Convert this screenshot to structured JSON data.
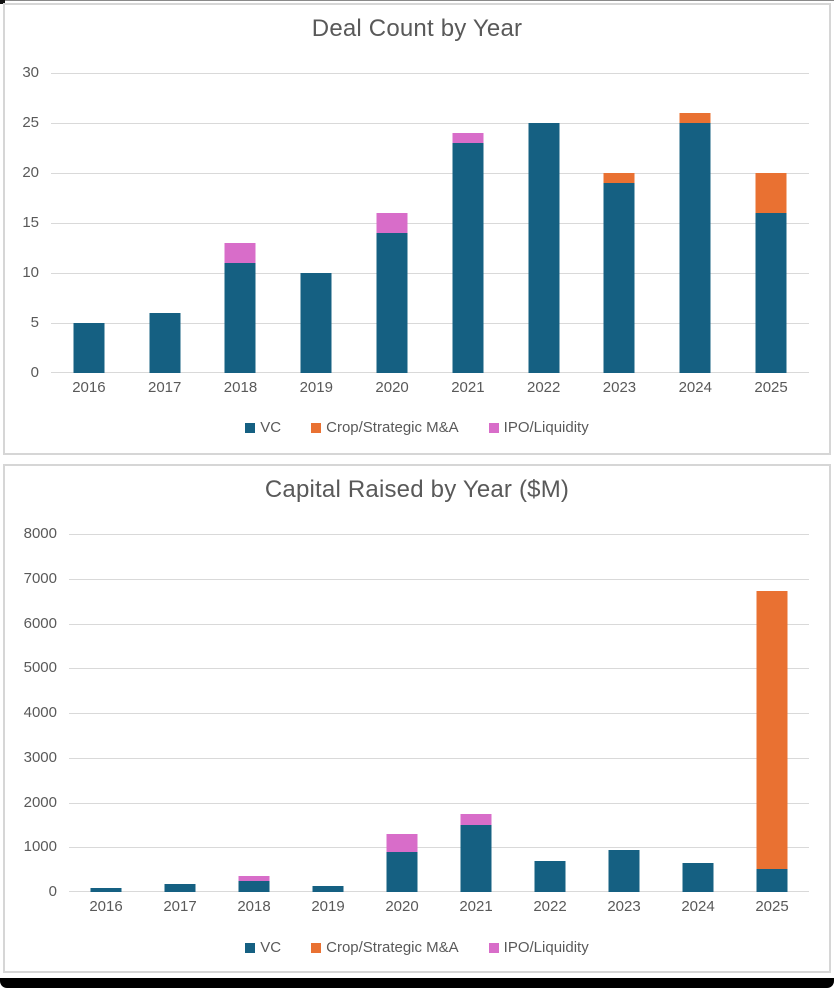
{
  "window": {
    "background": "#ffffff",
    "panel_border_color": "#D6D6D6",
    "grid_color": "#D9D9D9",
    "text_color": "#595959"
  },
  "chart_data": [
    {
      "type": "bar",
      "stacked": true,
      "title": "Deal Count by Year",
      "categories": [
        "2016",
        "2017",
        "2018",
        "2019",
        "2020",
        "2021",
        "2022",
        "2023",
        "2024",
        "2025"
      ],
      "series": [
        {
          "name": "VC",
          "color": "#156082",
          "values": [
            5,
            6,
            11,
            10,
            14,
            23,
            25,
            19,
            25,
            16
          ]
        },
        {
          "name": "Crop/Strategic M&A",
          "color": "#E97132",
          "values": [
            0,
            0,
            0,
            0,
            0,
            0,
            0,
            1,
            1,
            4
          ]
        },
        {
          "name": "IPO/Liquidity",
          "color": "#D86DC9",
          "values": [
            0,
            0,
            2,
            0,
            2,
            1,
            0,
            0,
            0,
            0
          ]
        }
      ],
      "xlabel": "",
      "ylabel": "",
      "ylim": [
        0,
        30
      ],
      "yticks": [
        0,
        5,
        10,
        15,
        20,
        25,
        30
      ],
      "grid": true,
      "legend_position": "bottom"
    },
    {
      "type": "bar",
      "stacked": true,
      "title": "Capital Raised by Year ($M)",
      "categories": [
        "2016",
        "2017",
        "2018",
        "2019",
        "2020",
        "2021",
        "2022",
        "2023",
        "2024",
        "2025"
      ],
      "series": [
        {
          "name": "VC",
          "color": "#156082",
          "values": [
            100,
            190,
            250,
            140,
            900,
            1500,
            700,
            950,
            650,
            520
          ]
        },
        {
          "name": "Crop/Strategic M&A",
          "color": "#E97132",
          "values": [
            0,
            0,
            0,
            0,
            0,
            0,
            0,
            0,
            0,
            6200
          ]
        },
        {
          "name": "IPO/Liquidity",
          "color": "#D86DC9",
          "values": [
            0,
            0,
            100,
            0,
            400,
            250,
            0,
            0,
            0,
            0
          ]
        }
      ],
      "xlabel": "",
      "ylabel": "",
      "ylim": [
        0,
        8000
      ],
      "yticks": [
        0,
        1000,
        2000,
        3000,
        4000,
        5000,
        6000,
        7000,
        8000
      ],
      "grid": true,
      "legend_position": "bottom"
    }
  ]
}
